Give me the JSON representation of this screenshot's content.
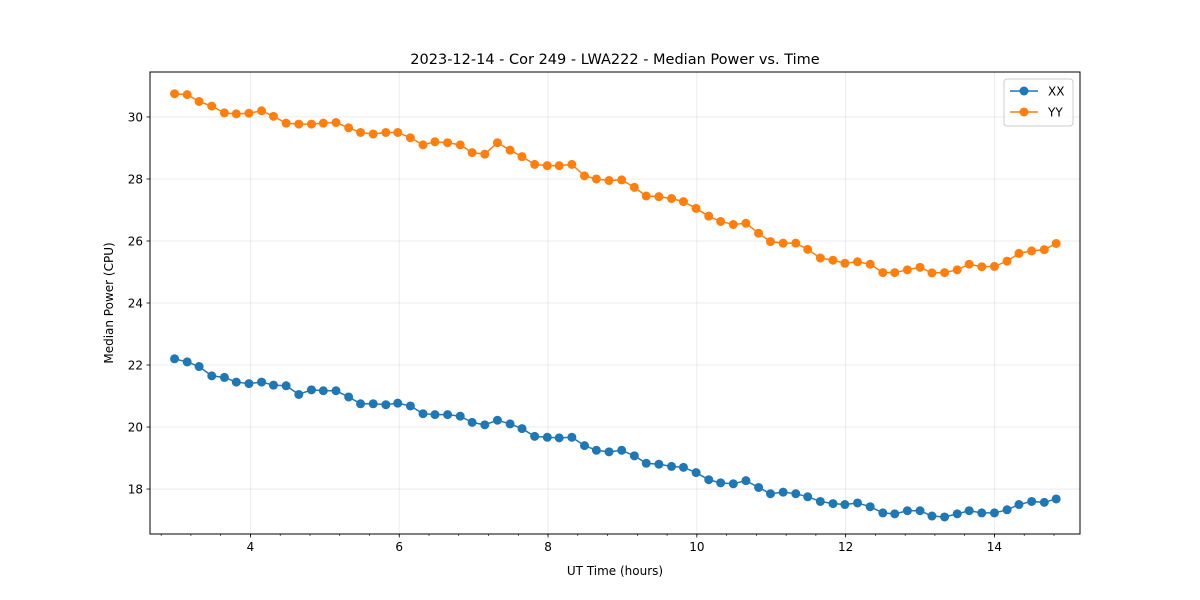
{
  "chart_data": {
    "type": "line",
    "title": "2023-12-14 - Cor 249 - LWA222 - Median Power vs. Time",
    "xlabel": "UT Time (hours)",
    "ylabel": "Median Power (CPU)",
    "xlim": [
      2.65,
      15.15
    ],
    "ylim": [
      16.55,
      31.45
    ],
    "xticks": [
      4,
      6,
      8,
      10,
      12,
      14
    ],
    "xtick_labels": [
      "4",
      "6",
      "8",
      "10",
      "12",
      "14"
    ],
    "xminor_step": 0.4,
    "yticks": [
      18,
      20,
      22,
      24,
      26,
      28,
      30
    ],
    "ytick_labels": [
      "18",
      "20",
      "22",
      "24",
      "26",
      "28",
      "30"
    ],
    "grid": true,
    "legend_position": "top-right",
    "x": [
      2.98,
      3.15,
      3.31,
      3.48,
      3.65,
      3.81,
      3.98,
      4.15,
      4.31,
      4.48,
      4.65,
      4.82,
      4.98,
      5.15,
      5.32,
      5.48,
      5.65,
      5.82,
      5.98,
      6.15,
      6.32,
      6.48,
      6.65,
      6.82,
      6.98,
      7.15,
      7.32,
      7.49,
      7.65,
      7.82,
      7.99,
      8.15,
      8.32,
      8.49,
      8.65,
      8.82,
      8.99,
      9.16,
      9.32,
      9.49,
      9.66,
      9.82,
      9.99,
      10.16,
      10.32,
      10.49,
      10.66,
      10.83,
      10.99,
      11.16,
      11.33,
      11.49,
      11.66,
      11.83,
      11.99,
      12.16,
      12.33,
      12.5,
      12.66,
      12.83,
      13.0,
      13.16,
      13.33,
      13.5,
      13.66,
      13.83,
      14.0,
      14.17,
      14.33,
      14.5,
      14.67,
      14.83
    ],
    "series": [
      {
        "name": "XX",
        "color": "#1f77b4",
        "values": [
          22.2,
          22.1,
          21.95,
          21.65,
          21.6,
          21.45,
          21.4,
          21.45,
          21.35,
          21.33,
          21.05,
          21.2,
          21.17,
          21.17,
          20.97,
          20.75,
          20.75,
          20.72,
          20.77,
          20.68,
          20.43,
          20.4,
          20.4,
          20.35,
          20.15,
          20.07,
          20.22,
          20.1,
          19.95,
          19.7,
          19.67,
          19.65,
          19.67,
          19.4,
          19.25,
          19.2,
          19.25,
          19.07,
          18.83,
          18.8,
          18.73,
          18.7,
          18.53,
          18.3,
          18.2,
          18.17,
          18.27,
          18.05,
          17.85,
          17.9,
          17.85,
          17.75,
          17.6,
          17.53,
          17.5,
          17.55,
          17.43,
          17.23,
          17.2,
          17.3,
          17.3,
          17.13,
          17.1,
          17.2,
          17.3,
          17.23,
          17.23,
          17.33,
          17.5,
          17.6,
          17.57,
          17.68
        ]
      },
      {
        "name": "YY",
        "color": "#ff7f0e",
        "values": [
          30.75,
          30.72,
          30.5,
          30.35,
          30.13,
          30.1,
          30.12,
          30.2,
          30.02,
          29.8,
          29.77,
          29.77,
          29.8,
          29.82,
          29.65,
          29.5,
          29.45,
          29.5,
          29.5,
          29.33,
          29.1,
          29.2,
          29.17,
          29.1,
          28.85,
          28.8,
          29.17,
          28.93,
          28.72,
          28.47,
          28.43,
          28.43,
          28.47,
          28.1,
          28.0,
          27.95,
          27.97,
          27.73,
          27.45,
          27.43,
          27.37,
          27.27,
          27.05,
          26.8,
          26.63,
          26.53,
          26.57,
          26.25,
          25.98,
          25.93,
          25.93,
          25.73,
          25.45,
          25.38,
          25.28,
          25.33,
          25.25,
          24.98,
          24.98,
          25.07,
          25.15,
          24.97,
          24.98,
          25.07,
          25.25,
          25.17,
          25.18,
          25.35,
          25.6,
          25.68,
          25.72,
          25.92
        ]
      }
    ]
  }
}
